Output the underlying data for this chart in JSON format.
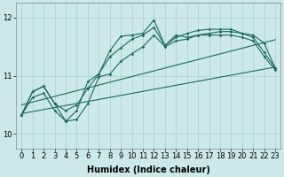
{
  "xlabel": "Humidex (Indice chaleur)",
  "bg_color": "#cce8e8",
  "grid_color": "#aacfcf",
  "line_color": "#1a6b5a",
  "xlim": [
    -0.5,
    23.5
  ],
  "ylim": [
    9.75,
    12.25
  ],
  "yticks": [
    10,
    11,
    12
  ],
  "xticks": [
    0,
    1,
    2,
    3,
    4,
    5,
    6,
    7,
    8,
    9,
    10,
    11,
    12,
    13,
    14,
    15,
    16,
    17,
    18,
    19,
    20,
    21,
    22,
    23
  ],
  "line1_x": [
    0,
    1,
    2,
    3,
    4,
    5,
    6,
    7,
    8,
    9,
    10,
    11,
    12,
    13,
    14,
    15,
    16,
    17,
    18,
    19,
    20,
    21,
    22,
    23
  ],
  "line1_y": [
    10.33,
    10.73,
    10.82,
    10.52,
    10.4,
    10.5,
    10.78,
    11.03,
    11.33,
    11.48,
    11.63,
    11.7,
    11.83,
    11.52,
    11.7,
    11.66,
    11.7,
    11.73,
    11.76,
    11.76,
    11.73,
    11.7,
    11.56,
    11.13
  ],
  "line2_x": [
    0,
    1,
    2,
    3,
    4,
    5,
    6,
    7,
    8,
    9,
    10,
    11,
    12,
    13,
    14,
    15,
    16,
    17,
    18,
    19,
    20,
    21,
    22,
    23
  ],
  "line2_y": [
    10.33,
    10.73,
    10.82,
    10.52,
    10.22,
    10.4,
    10.9,
    11.03,
    11.43,
    11.68,
    11.7,
    11.73,
    11.96,
    11.52,
    11.66,
    11.73,
    11.78,
    11.8,
    11.8,
    11.8,
    11.73,
    11.66,
    11.4,
    11.13
  ],
  "line3_x": [
    0,
    1,
    2,
    3,
    4,
    5,
    6,
    7,
    8,
    9,
    10,
    11,
    12,
    13,
    14,
    15,
    16,
    17,
    18,
    19,
    20,
    21,
    22,
    23
  ],
  "line3_y": [
    10.33,
    10.63,
    10.7,
    10.4,
    10.22,
    10.25,
    10.52,
    10.98,
    11.03,
    11.25,
    11.38,
    11.5,
    11.7,
    11.5,
    11.6,
    11.63,
    11.7,
    11.7,
    11.7,
    11.7,
    11.66,
    11.6,
    11.33,
    11.1
  ],
  "trend1_x": [
    0,
    23
  ],
  "trend1_y": [
    10.35,
    11.15
  ],
  "trend2_x": [
    0,
    23
  ],
  "trend2_y": [
    10.5,
    11.62
  ],
  "fontsize_xlabel": 7,
  "fontsize_tick": 6,
  "marker_size": 1.8,
  "linewidth": 0.8
}
